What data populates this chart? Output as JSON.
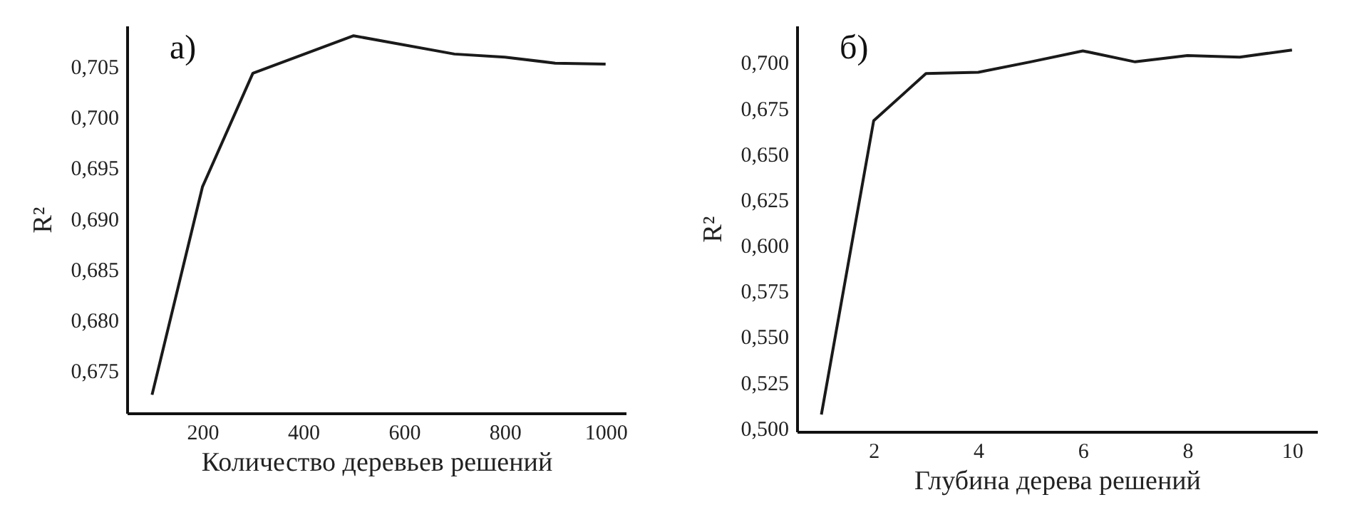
{
  "chart_data": [
    {
      "type": "line",
      "annotations": [
        "а)"
      ],
      "xlabel": "Количество деревьев решений",
      "ylabel": "R²",
      "x": [
        100,
        200,
        300,
        500,
        700,
        800,
        900,
        1000
      ],
      "series": [
        {
          "color": "#1a1a1a",
          "values": [
            0.6726,
            0.6931,
            0.7043,
            0.708,
            0.7062,
            0.7059,
            0.7053,
            0.7052
          ]
        }
      ],
      "xlim": [
        50,
        1040
      ],
      "xticks": [
        200,
        400,
        600,
        800,
        1000
      ],
      "ylim": [
        0.6708,
        0.709
      ],
      "yticks": [
        {
          "value": 0.675,
          "label": "0,675"
        },
        {
          "value": 0.68,
          "label": "0,680"
        },
        {
          "value": 0.685,
          "label": "0,685"
        },
        {
          "value": 0.69,
          "label": "0,690"
        },
        {
          "value": 0.695,
          "label": "0,695"
        },
        {
          "value": 0.7,
          "label": "0,700"
        },
        {
          "value": 0.705,
          "label": "0,705"
        }
      ]
    },
    {
      "type": "line",
      "annotations": [
        "б)"
      ],
      "xlabel": "Глубина дерева решений",
      "ylabel": "R²",
      "x": [
        1,
        2,
        3,
        4,
        5,
        6,
        7,
        8,
        9,
        10
      ],
      "series": [
        {
          "color": "#1a1a1a",
          "values": [
            0.5073,
            0.668,
            0.6938,
            0.6945,
            0.7002,
            0.7062,
            0.7002,
            0.7036,
            0.7028,
            0.7067
          ]
        }
      ],
      "xlim": [
        0.53,
        10.48
      ],
      "xticks": [
        2,
        4,
        6,
        8,
        10
      ],
      "ylim": [
        0.498,
        0.72
      ],
      "yticks": [
        {
          "value": 0.5,
          "label": "0,500"
        },
        {
          "value": 0.525,
          "label": "0,525"
        },
        {
          "value": 0.55,
          "label": "0,550"
        },
        {
          "value": 0.575,
          "label": "0,575"
        },
        {
          "value": 0.6,
          "label": "0,600"
        },
        {
          "value": 0.625,
          "label": "0,625"
        },
        {
          "value": 0.65,
          "label": "0,650"
        },
        {
          "value": 0.675,
          "label": "0,675"
        },
        {
          "value": 0.7,
          "label": "0,700"
        }
      ]
    }
  ]
}
